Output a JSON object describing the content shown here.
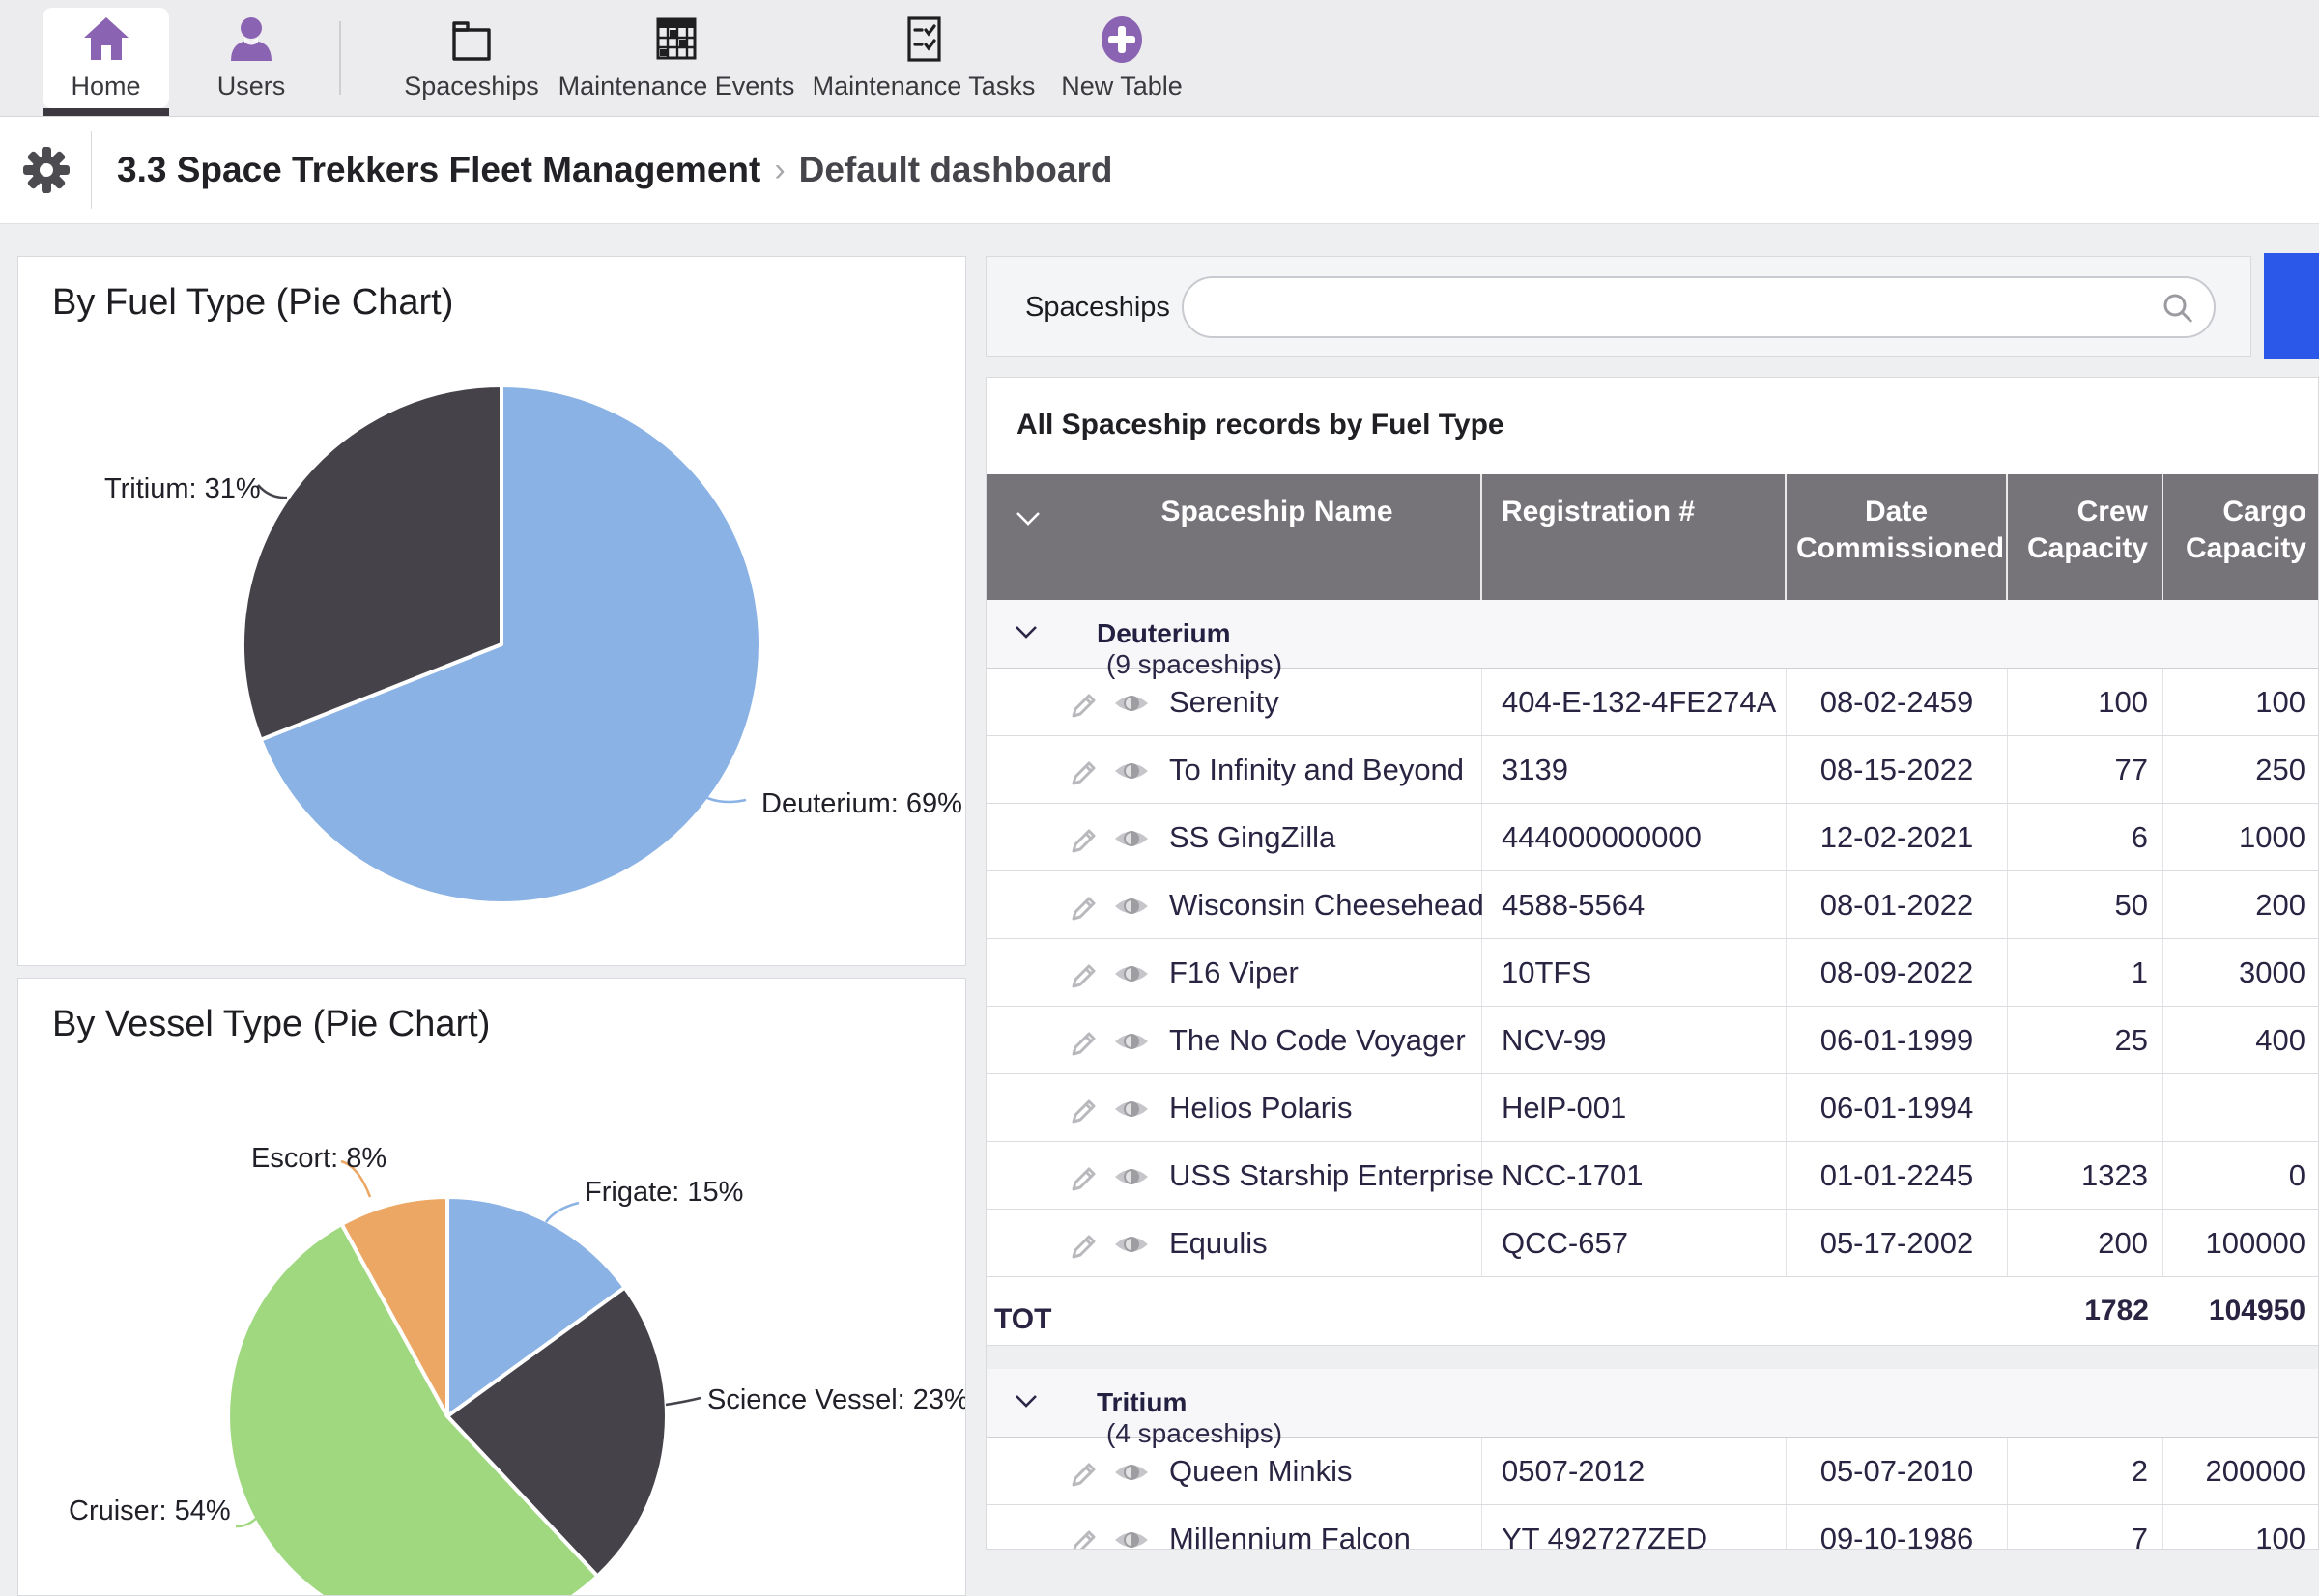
{
  "nav": {
    "items": [
      {
        "label": "Home",
        "active": true
      },
      {
        "label": "Users",
        "active": false
      },
      {
        "label": "Spaceships",
        "active": false
      },
      {
        "label": "Maintenance Events",
        "active": false
      },
      {
        "label": "Maintenance Tasks",
        "active": false
      },
      {
        "label": "New Table",
        "active": false
      }
    ],
    "accent_purple": "#8a63b2"
  },
  "breadcrumb": {
    "app_title": "3.3 Space Trekkers Fleet Management",
    "separator": "›",
    "page": "Default dashboard"
  },
  "search": {
    "label": "Spaceships",
    "value": "",
    "placeholder": ""
  },
  "actions": {
    "primary_button_color": "#2b58e8"
  },
  "chart_data": [
    {
      "type": "pie",
      "title": "By Fuel Type (Pie Chart)",
      "start_angle": "top",
      "direction": "clockwise",
      "slices": [
        {
          "label": "Deuterium",
          "value": 69,
          "color": "#8ab2e4",
          "label_text": "Deuterium: 69%"
        },
        {
          "label": "Tritium",
          "value": 31,
          "color": "#454349",
          "label_text": "Tritium: 31%"
        }
      ]
    },
    {
      "type": "pie",
      "title": "By Vessel Type (Pie Chart)",
      "start_angle": "top",
      "direction": "clockwise",
      "slices": [
        {
          "label": "Frigate",
          "value": 15,
          "color": "#8ab2e4",
          "label_text": "Frigate: 15%"
        },
        {
          "label": "Science Vessel",
          "value": 23,
          "color": "#454349",
          "label_text": "Science Vessel: 23%"
        },
        {
          "label": "Cruiser",
          "value": 54,
          "color": "#9fd87f",
          "label_text": "Cruiser: 54%"
        },
        {
          "label": "Escort",
          "value": 8,
          "color": "#eba763",
          "label_text": "Escort: 8%"
        }
      ]
    }
  ],
  "table": {
    "title": "All Spaceship records by Fuel Type",
    "columns": [
      "Spaceship Name",
      "Registration #",
      "Date Commissioned",
      "Crew Capacity",
      "Cargo Capacity"
    ],
    "header_bg": "#767379",
    "groups": [
      {
        "name": "Deuterium",
        "count_label": "(9 spaceships)",
        "rows": [
          {
            "name": "Serenity",
            "registration": "404-E-132-4FE274A",
            "date": "08-02-2459",
            "crew": "100",
            "cargo": "100"
          },
          {
            "name": "To Infinity and Beyond",
            "registration": "3139",
            "date": "08-15-2022",
            "crew": "77",
            "cargo": "250"
          },
          {
            "name": "SS GingZilla",
            "registration": "444000000000",
            "date": "12-02-2021",
            "crew": "6",
            "cargo": "1000"
          },
          {
            "name": "Wisconsin Cheesehead",
            "registration": "4588-5564",
            "date": "08-01-2022",
            "crew": "50",
            "cargo": "200"
          },
          {
            "name": "F16 Viper",
            "registration": "10TFS",
            "date": "08-09-2022",
            "crew": "1",
            "cargo": "3000"
          },
          {
            "name": "The No Code Voyager",
            "registration": "NCV-99",
            "date": "06-01-1999",
            "crew": "25",
            "cargo": "400"
          },
          {
            "name": "Helios Polaris",
            "registration": "HelP-001",
            "date": "06-01-1994",
            "crew": "",
            "cargo": ""
          },
          {
            "name": "USS Starship Enterprise",
            "registration": "NCC-1701",
            "date": "01-01-2245",
            "crew": "1323",
            "cargo": "0"
          },
          {
            "name": "Equulis",
            "registration": "QCC-657",
            "date": "05-17-2002",
            "crew": "200",
            "cargo": "100000"
          }
        ],
        "totals": {
          "label": "TOT",
          "crew": "1782",
          "cargo": "104950"
        }
      },
      {
        "name": "Tritium",
        "count_label": "(4 spaceships)",
        "rows": [
          {
            "name": "Queen Minkis",
            "registration": "0507-2012",
            "date": "05-07-2010",
            "crew": "2",
            "cargo": "200000"
          },
          {
            "name": "Millennium Falcon",
            "registration": "YT 492727ZED",
            "date": "09-10-1986",
            "crew": "7",
            "cargo": "100"
          }
        ]
      }
    ]
  }
}
